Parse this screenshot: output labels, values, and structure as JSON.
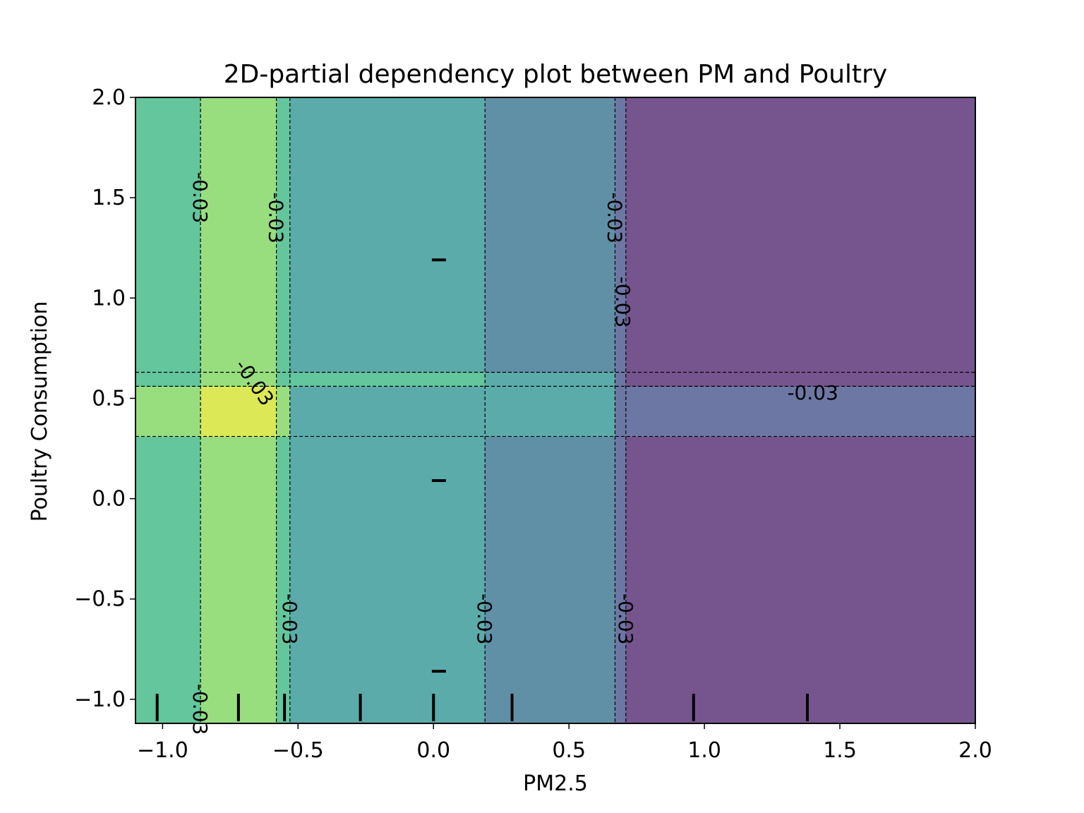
{
  "chart_data": {
    "type": "contour",
    "title": "2D-partial dependency plot between PM and Poultry",
    "xlabel": "PM2.5",
    "ylabel": "Poultry Consumption",
    "xlim": [
      -1.1,
      2.0
    ],
    "ylim": [
      -1.12,
      2.0
    ],
    "x_ticks": [
      -1.0,
      -0.5,
      0.0,
      0.5,
      1.0,
      1.5,
      2.0
    ],
    "x_tick_labels": [
      "−1.0",
      "−0.5",
      "0.0",
      "0.5",
      "1.0",
      "1.5",
      "2.0"
    ],
    "y_ticks": [
      -1.0,
      -0.5,
      0.0,
      0.5,
      1.0,
      1.5,
      2.0
    ],
    "y_tick_labels": [
      "−1.0",
      "−0.5",
      "0.0",
      "0.5",
      "1.0",
      "1.5",
      "2.0"
    ],
    "x_breaks": [
      -1.1,
      -0.86,
      -0.58,
      -0.53,
      0.19,
      0.67,
      0.71,
      2.0
    ],
    "y_breaks": [
      -1.12,
      0.31,
      0.56,
      0.63,
      2.0
    ],
    "region_colors": [
      [
        "#63c69c",
        "#98de7f",
        "#63c69c",
        "#5cabab",
        "#6090a6",
        "#6d77a4",
        "#76558f"
      ],
      [
        "#98de7f",
        "#dce855",
        "#98de7f",
        "#5cabab",
        "#5cabab",
        "#6d77a4",
        "#6d77a4"
      ],
      [
        "#63c69c",
        "#98de7f",
        "#63c69c",
        "#63c69c",
        "#5cabab",
        "#6d77a4",
        "#76558f"
      ],
      [
        "#63c69c",
        "#98de7f",
        "#63c69c",
        "#5cabab",
        "#6090a6",
        "#6d77a4",
        "#76558f"
      ]
    ],
    "contour_level_label": "-0.03",
    "contour_labels": [
      {
        "text": "-0.03",
        "x": -0.86,
        "y": 1.5,
        "angle": 90
      },
      {
        "text": "-0.03",
        "x": -0.58,
        "y": 1.4,
        "angle": 90
      },
      {
        "text": "-0.03",
        "x": 0.67,
        "y": 1.4,
        "angle": 90
      },
      {
        "text": "-0.03",
        "x": 0.7,
        "y": 0.98,
        "angle": 90
      },
      {
        "text": "-0.03",
        "x": 1.4,
        "y": 0.53,
        "angle": 0
      },
      {
        "text": "-0.03",
        "x": -0.53,
        "y": -0.6,
        "angle": 90
      },
      {
        "text": "-0.03",
        "x": 0.19,
        "y": -0.6,
        "angle": 90
      },
      {
        "text": "-0.03",
        "x": 0.71,
        "y": -0.6,
        "angle": 90
      },
      {
        "text": "-0.03",
        "x": -0.66,
        "y": 0.58,
        "angle": 55
      },
      {
        "text": "-0.03",
        "x": -0.86,
        "y": -1.05,
        "angle": 90
      }
    ],
    "x_rug": [
      -1.02,
      -0.72,
      -0.55,
      -0.27,
      0.0,
      0.29,
      0.96,
      1.38
    ],
    "y_rug": [
      1.19,
      0.09,
      -0.86
    ]
  }
}
